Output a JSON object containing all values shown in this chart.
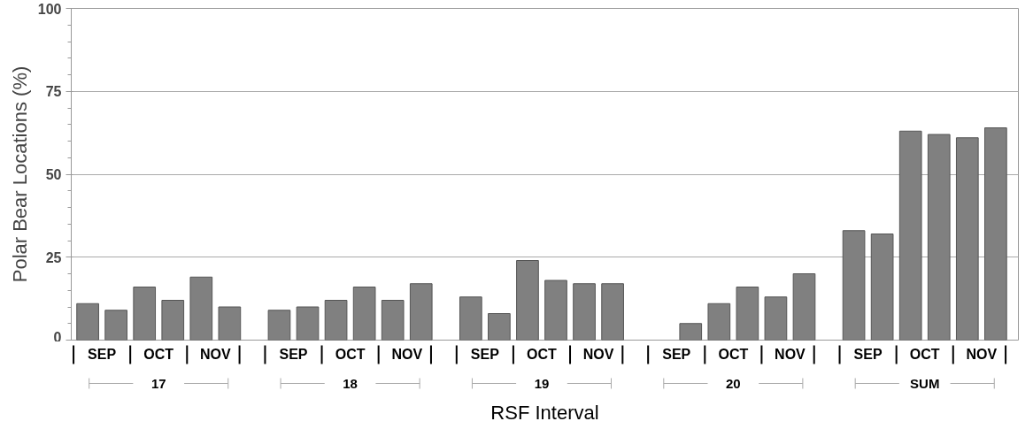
{
  "chart_data": {
    "type": "bar",
    "ylabel": "Polar Bear Locations (%)",
    "xlabel": "RSF Interval",
    "categories": [
      "SEP",
      "OCT",
      "NOV",
      "SEP",
      "OCT",
      "NOV",
      "SEP",
      "OCT",
      "NOV",
      "SEP",
      "OCT",
      "NOV",
      "SEP",
      "OCT",
      "NOV"
    ],
    "series": [
      {
        "color": "#808080",
        "values": [
          11,
          16,
          19,
          9,
          12,
          12,
          13,
          24,
          17,
          null,
          11,
          13,
          33,
          63,
          61
        ]
      },
      {
        "color": "#808080",
        "values": [
          9,
          12,
          10,
          10,
          16,
          17,
          8,
          18,
          17,
          5,
          16,
          20,
          32,
          62,
          64
        ]
      }
    ],
    "annotations": [
      "17",
      "18",
      "19",
      "20",
      "SUM"
    ],
    "ylim": [
      0,
      100
    ],
    "yticks": [
      0,
      25,
      50,
      75,
      100
    ],
    "grid": "y"
  }
}
